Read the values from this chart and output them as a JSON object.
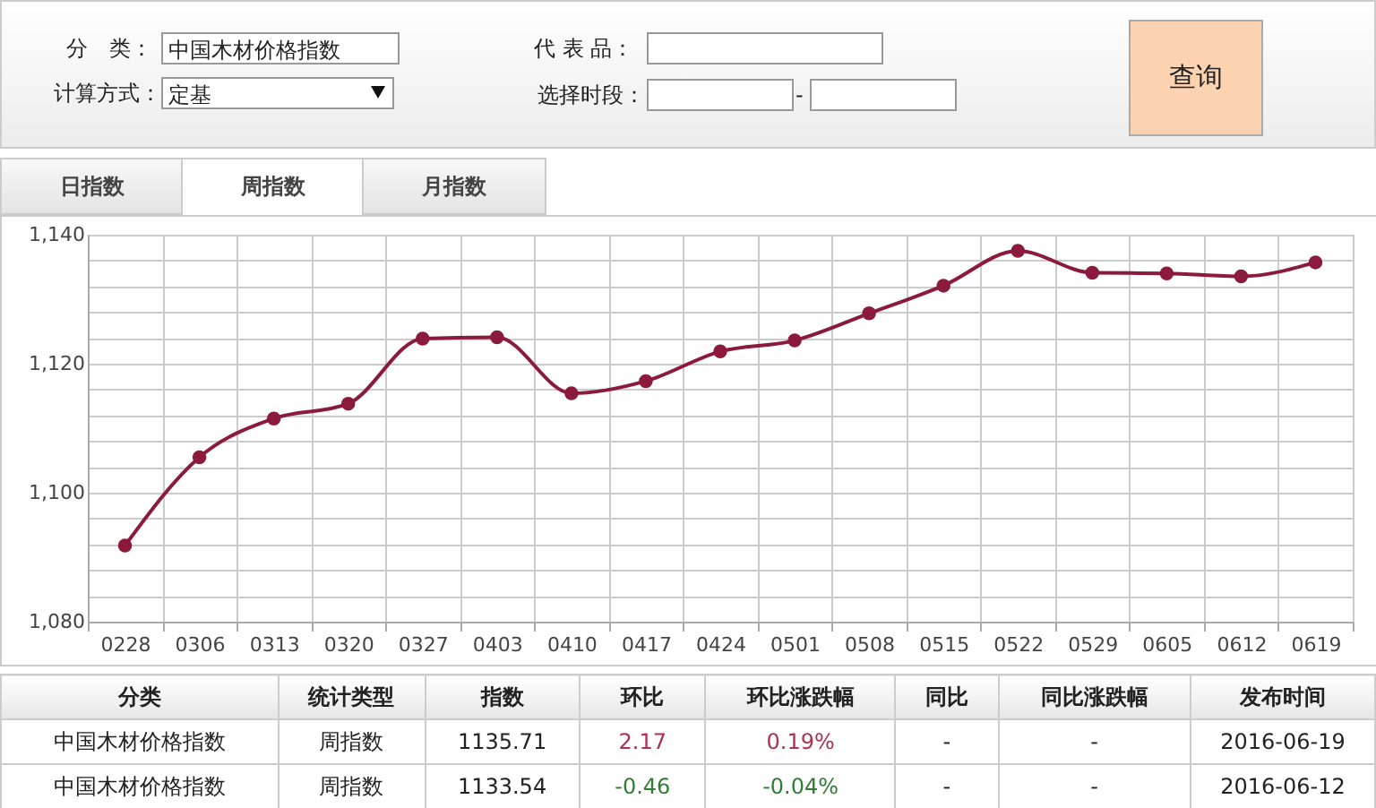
{
  "chart_data": {
    "type": "line",
    "categories": [
      "0228",
      "0306",
      "0313",
      "0320",
      "0327",
      "0403",
      "0410",
      "0417",
      "0424",
      "0501",
      "0508",
      "0515",
      "0522",
      "0529",
      "0605",
      "0612",
      "0619"
    ],
    "values": [
      1091.8,
      1105.5,
      1111.5,
      1113.8,
      1123.9,
      1124.1,
      1115.4,
      1117.3,
      1121.9,
      1123.6,
      1127.8,
      1132.1,
      1137.5,
      1134.1,
      1134.0,
      1133.54,
      1135.71
    ],
    "color": "#8b1a3c",
    "marker": "circle",
    "grid": true,
    "ylim": [
      1080,
      1140
    ],
    "yticks": [
      {
        "value": 1080,
        "label": "1,080"
      },
      {
        "value": 1084,
        "label": null
      },
      {
        "value": 1088,
        "label": null
      },
      {
        "value": 1092,
        "label": null
      },
      {
        "value": 1096,
        "label": null
      },
      {
        "value": 1100,
        "label": "1,100"
      },
      {
        "value": 1104,
        "label": null
      },
      {
        "value": 1108,
        "label": null
      },
      {
        "value": 1112,
        "label": null
      },
      {
        "value": 1116,
        "label": null
      },
      {
        "value": 1120,
        "label": "1,120"
      },
      {
        "value": 1124,
        "label": null
      },
      {
        "value": 1128,
        "label": null
      },
      {
        "value": 1132,
        "label": null
      },
      {
        "value": 1136,
        "label": null
      },
      {
        "value": 1140,
        "label": "1,140"
      }
    ],
    "annotations": [
      "分　类：",
      "中国木材价格指数",
      "计算方式：",
      "定基",
      "代 表 品：",
      "选择时段：",
      "-",
      "查询",
      "日指数",
      "周指数",
      "月指数",
      "分类",
      "统计类型",
      "指数",
      "环比",
      "环比涨跌幅",
      "同比",
      "同比涨跌幅",
      "发布时间",
      "中国木材价格指数",
      "周指数",
      "1135.71",
      "2.17",
      "0.19%",
      "-",
      "-",
      "2016-06-19",
      "中国木材价格指数",
      "周指数",
      "1133.54",
      "-0.46",
      "-0.04%",
      "-",
      "-",
      "2016-06-12"
    ]
  }
}
